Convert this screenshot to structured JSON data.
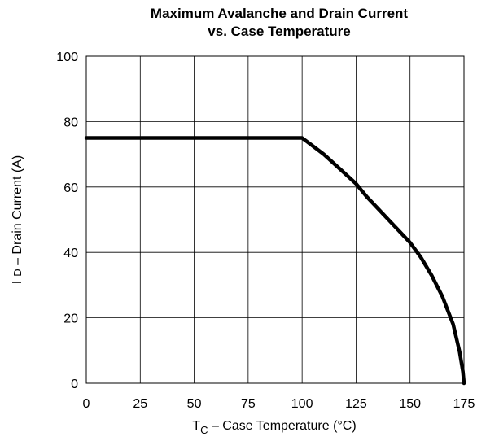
{
  "chart_data": {
    "type": "line",
    "title": "Maximum Avalanche and Drain Current",
    "subtitle": "vs. Case Temperature",
    "xlabel": {
      "main": "T",
      "sub": "C",
      "rest": " – Case Temperature (°C)"
    },
    "ylabel": {
      "main": "I",
      "sub": "D",
      "rest": " – Drain Current (A)"
    },
    "xlim": [
      0,
      175
    ],
    "ylim": [
      0,
      100
    ],
    "x_ticks": [
      0,
      25,
      50,
      75,
      100,
      125,
      150,
      175
    ],
    "y_ticks": [
      0,
      20,
      40,
      60,
      80,
      100
    ],
    "grid": true,
    "series": [
      {
        "color": "#000000",
        "x": [
          0,
          25,
          50,
          75,
          99,
          100,
          110,
          120,
          125,
          130,
          140,
          150,
          155,
          160,
          165,
          170,
          173,
          174.5,
          175
        ],
        "y": [
          75,
          75,
          75,
          75,
          75,
          75,
          70,
          64,
          61,
          57,
          50,
          43,
          38.5,
          33,
          26.5,
          18,
          9.5,
          3.5,
          0
        ]
      }
    ]
  }
}
